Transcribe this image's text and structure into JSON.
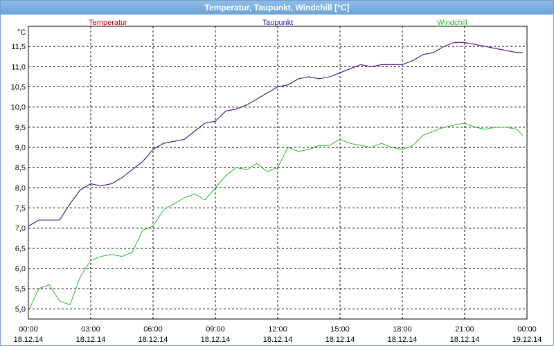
{
  "window": {
    "title": "Temperatur, Taupunkt, Windchill [°C]"
  },
  "chart_data": {
    "type": "line",
    "title": "Temperatur, Taupunkt, Windchill [°C]",
    "ylabel": "°C",
    "ylim": [
      4.75,
      12.0
    ],
    "xlim_hours": [
      0,
      24
    ],
    "yticks": [
      "5,0",
      "5,5",
      "6,0",
      "6,5",
      "7,0",
      "7,5",
      "8,0",
      "8,5",
      "9,0",
      "9,5",
      "10,0",
      "10,5",
      "11,0",
      "11,5"
    ],
    "xticks": [
      {
        "time": "00:00",
        "date": "18.12.14"
      },
      {
        "time": "03:00",
        "date": "18.12.14"
      },
      {
        "time": "06:00",
        "date": "18.12.14"
      },
      {
        "time": "09:00",
        "date": "18.12.14"
      },
      {
        "time": "12:00",
        "date": "18.12.14"
      },
      {
        "time": "15:00",
        "date": "18.12.14"
      },
      {
        "time": "18:00",
        "date": "18.12.14"
      },
      {
        "time": "21:00",
        "date": "18.12.14"
      },
      {
        "time": "00:00",
        "date": "19.12.14"
      }
    ],
    "grid": true,
    "x": [
      0,
      0.5,
      1,
      1.5,
      2,
      2.5,
      3,
      3.5,
      4,
      4.5,
      5,
      5.5,
      6,
      6.5,
      7,
      7.5,
      8,
      8.5,
      9,
      9.5,
      10,
      10.5,
      11,
      11.5,
      12,
      12.5,
      13,
      13.5,
      14,
      14.5,
      15,
      15.5,
      16,
      16.5,
      17,
      17.5,
      18,
      18.5,
      19,
      19.5,
      20,
      20.5,
      21,
      21.5,
      22,
      22.5,
      23,
      23.5,
      23.8
    ],
    "series": [
      {
        "name": "Temperatur",
        "color": "#cc0000",
        "values": [
          7.05,
          7.2,
          7.2,
          7.2,
          7.6,
          7.95,
          8.1,
          8.05,
          8.1,
          8.25,
          8.45,
          8.65,
          8.95,
          9.1,
          9.15,
          9.2,
          9.4,
          9.6,
          9.65,
          9.9,
          9.95,
          10.05,
          10.2,
          10.35,
          10.5,
          10.55,
          10.7,
          10.75,
          10.7,
          10.75,
          10.85,
          10.95,
          11.05,
          11.0,
          11.05,
          11.05,
          11.05,
          11.15,
          11.3,
          11.35,
          11.5,
          11.6,
          11.6,
          11.55,
          11.5,
          11.45,
          11.4,
          11.35,
          11.35
        ]
      },
      {
        "name": "Taupunkt",
        "color": "#1a1aaa",
        "values": [
          7.05,
          7.2,
          7.2,
          7.2,
          7.6,
          7.95,
          8.1,
          8.05,
          8.1,
          8.25,
          8.45,
          8.65,
          8.95,
          9.1,
          9.15,
          9.2,
          9.4,
          9.6,
          9.65,
          9.9,
          9.95,
          10.05,
          10.2,
          10.35,
          10.5,
          10.55,
          10.7,
          10.75,
          10.7,
          10.75,
          10.85,
          10.95,
          11.05,
          11.0,
          11.05,
          11.05,
          11.05,
          11.15,
          11.3,
          11.35,
          11.5,
          11.6,
          11.6,
          11.55,
          11.5,
          11.45,
          11.4,
          11.35,
          11.35
        ]
      },
      {
        "name": "Windchill",
        "color": "#22bb22",
        "values": [
          4.95,
          5.5,
          5.6,
          5.2,
          5.1,
          5.8,
          6.2,
          6.3,
          6.35,
          6.3,
          6.4,
          6.95,
          7.05,
          7.45,
          7.6,
          7.75,
          7.85,
          7.7,
          8.0,
          8.3,
          8.5,
          8.45,
          8.6,
          8.4,
          8.5,
          9.0,
          8.9,
          8.95,
          9.05,
          9.05,
          9.2,
          9.1,
          9.05,
          9.0,
          9.1,
          9.0,
          8.95,
          9.05,
          9.3,
          9.4,
          9.5,
          9.55,
          9.6,
          9.5,
          9.45,
          9.5,
          9.5,
          9.45,
          9.3
        ]
      }
    ]
  }
}
